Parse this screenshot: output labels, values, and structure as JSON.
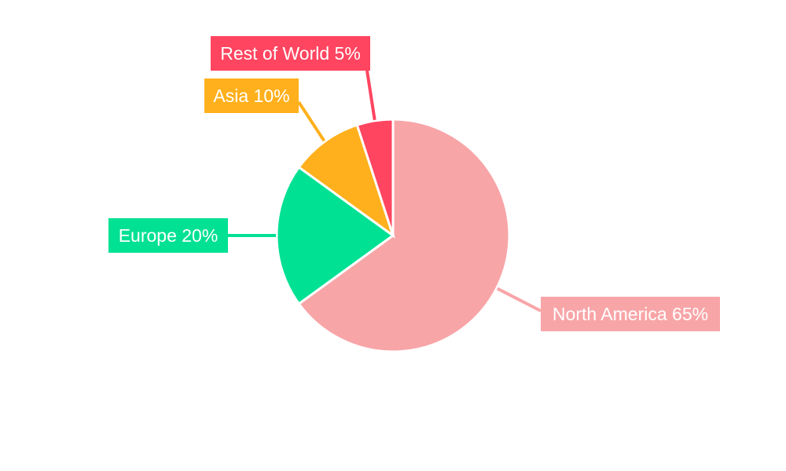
{
  "chart_data": {
    "type": "pie",
    "categories": [
      "North America",
      "Europe",
      "Asia",
      "Rest of World"
    ],
    "values": [
      65,
      20,
      10,
      5
    ],
    "labels": [
      "North America 65%",
      "Europe 20%",
      "Asia 10%",
      "Rest of World 5%"
    ],
    "colors": [
      "#f8a5a8",
      "#00e194",
      "#ffb01c",
      "#ff4560"
    ],
    "start": "top",
    "direction": "clockwise",
    "legend": "none"
  }
}
